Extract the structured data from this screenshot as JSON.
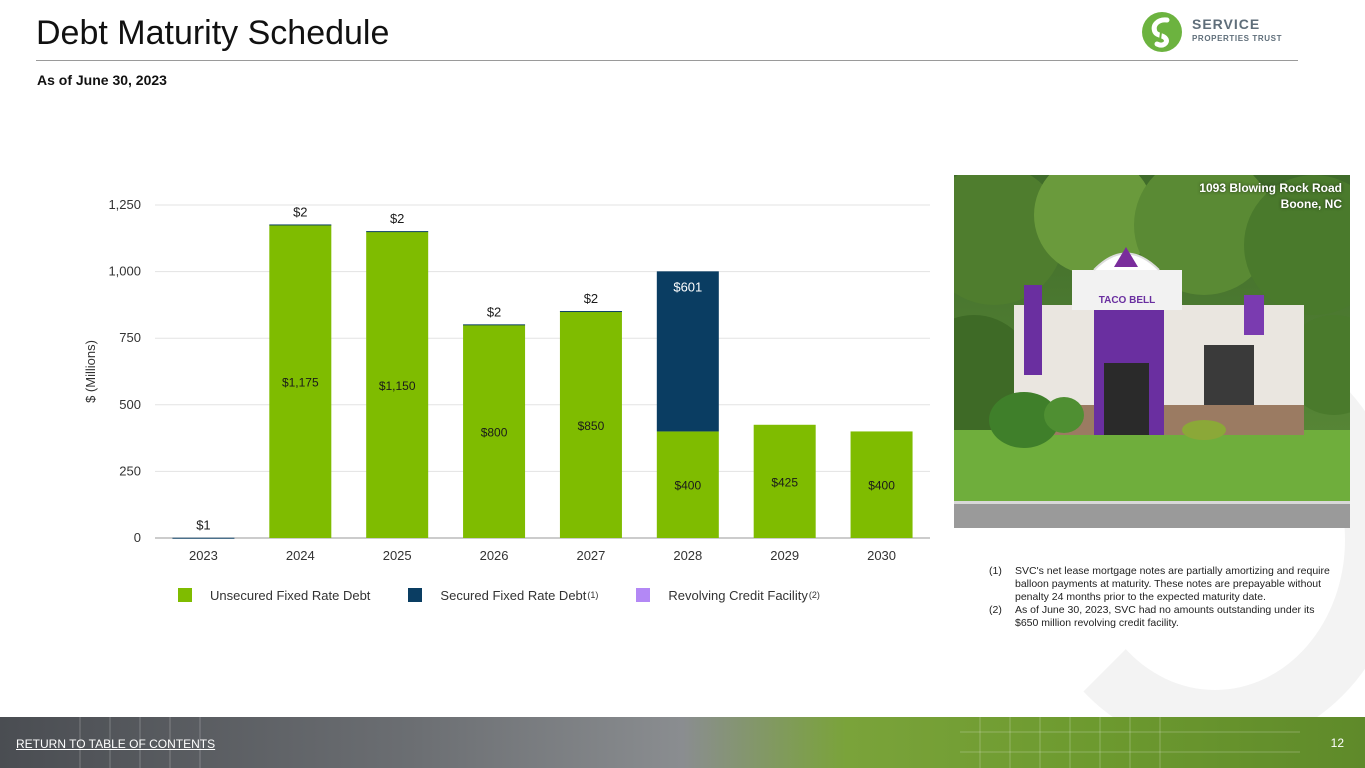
{
  "header": {
    "title": "Debt Maturity Schedule",
    "subtitle": "As of June 30, 2023",
    "logo_line1": "SERVICE",
    "logo_line2": "PROPERTIES TRUST"
  },
  "colors": {
    "unsecured": "#7fbc00",
    "secured": "#0a3d62",
    "revolving": "#b388f5",
    "brand_green": "#6cb33f",
    "grid": "#e3e3e3"
  },
  "chart_data": {
    "type": "bar",
    "stacked": true,
    "categories": [
      "2023",
      "2024",
      "2025",
      "2026",
      "2027",
      "2028",
      "2029",
      "2030"
    ],
    "series": [
      {
        "name": "Unsecured Fixed Rate Debt",
        "values": [
          0,
          1175,
          1150,
          800,
          850,
          400,
          425,
          400
        ]
      },
      {
        "name": "Secured Fixed Rate Debt",
        "values": [
          1,
          2,
          2,
          2,
          2,
          601,
          0,
          0
        ]
      },
      {
        "name": "Revolving Credit Facility",
        "values": [
          0,
          0,
          0,
          0,
          0,
          0,
          0,
          0
        ]
      }
    ],
    "inner_labels": [
      "",
      "$1,175",
      "$1,150",
      "$800",
      "$850",
      "$400",
      "$425",
      "$400"
    ],
    "top_labels": [
      "$1",
      "$2",
      "$2",
      "$2",
      "$2",
      "$601",
      "",
      ""
    ],
    "ylabel": "$ (Millions)",
    "xlabel": "",
    "ylim": [
      0,
      1250
    ],
    "yticks": [
      0,
      250,
      500,
      750,
      1000,
      1250
    ],
    "ytick_labels": [
      "0",
      "250",
      "500",
      "750",
      "1,000",
      "1,250"
    ],
    "grid": true,
    "legend": "bottom"
  },
  "legend": {
    "unsecured_label": "Unsecured Fixed Rate Debt",
    "secured_label": "Secured Fixed Rate Debt",
    "secured_note": "(1)",
    "revolving_label": "Revolving Credit Facility",
    "revolving_note": "(2)"
  },
  "photo": {
    "caption_line1": "1093 Blowing Rock Road",
    "caption_line2": "Boone, NC",
    "sign_text": "TACO BELL"
  },
  "footnotes": [
    {
      "num": "(1)",
      "text": "SVC's net lease mortgage notes are partially amortizing and require balloon payments at maturity. These notes are prepayable without penalty 24 months prior to the expected maturity date."
    },
    {
      "num": "(2)",
      "text": "As of June 30, 2023, SVC had no amounts outstanding under its $650 million revolving credit facility."
    }
  ],
  "footer": {
    "link_text": "RETURN TO TABLE OF CONTENTS",
    "page_number": "12"
  }
}
